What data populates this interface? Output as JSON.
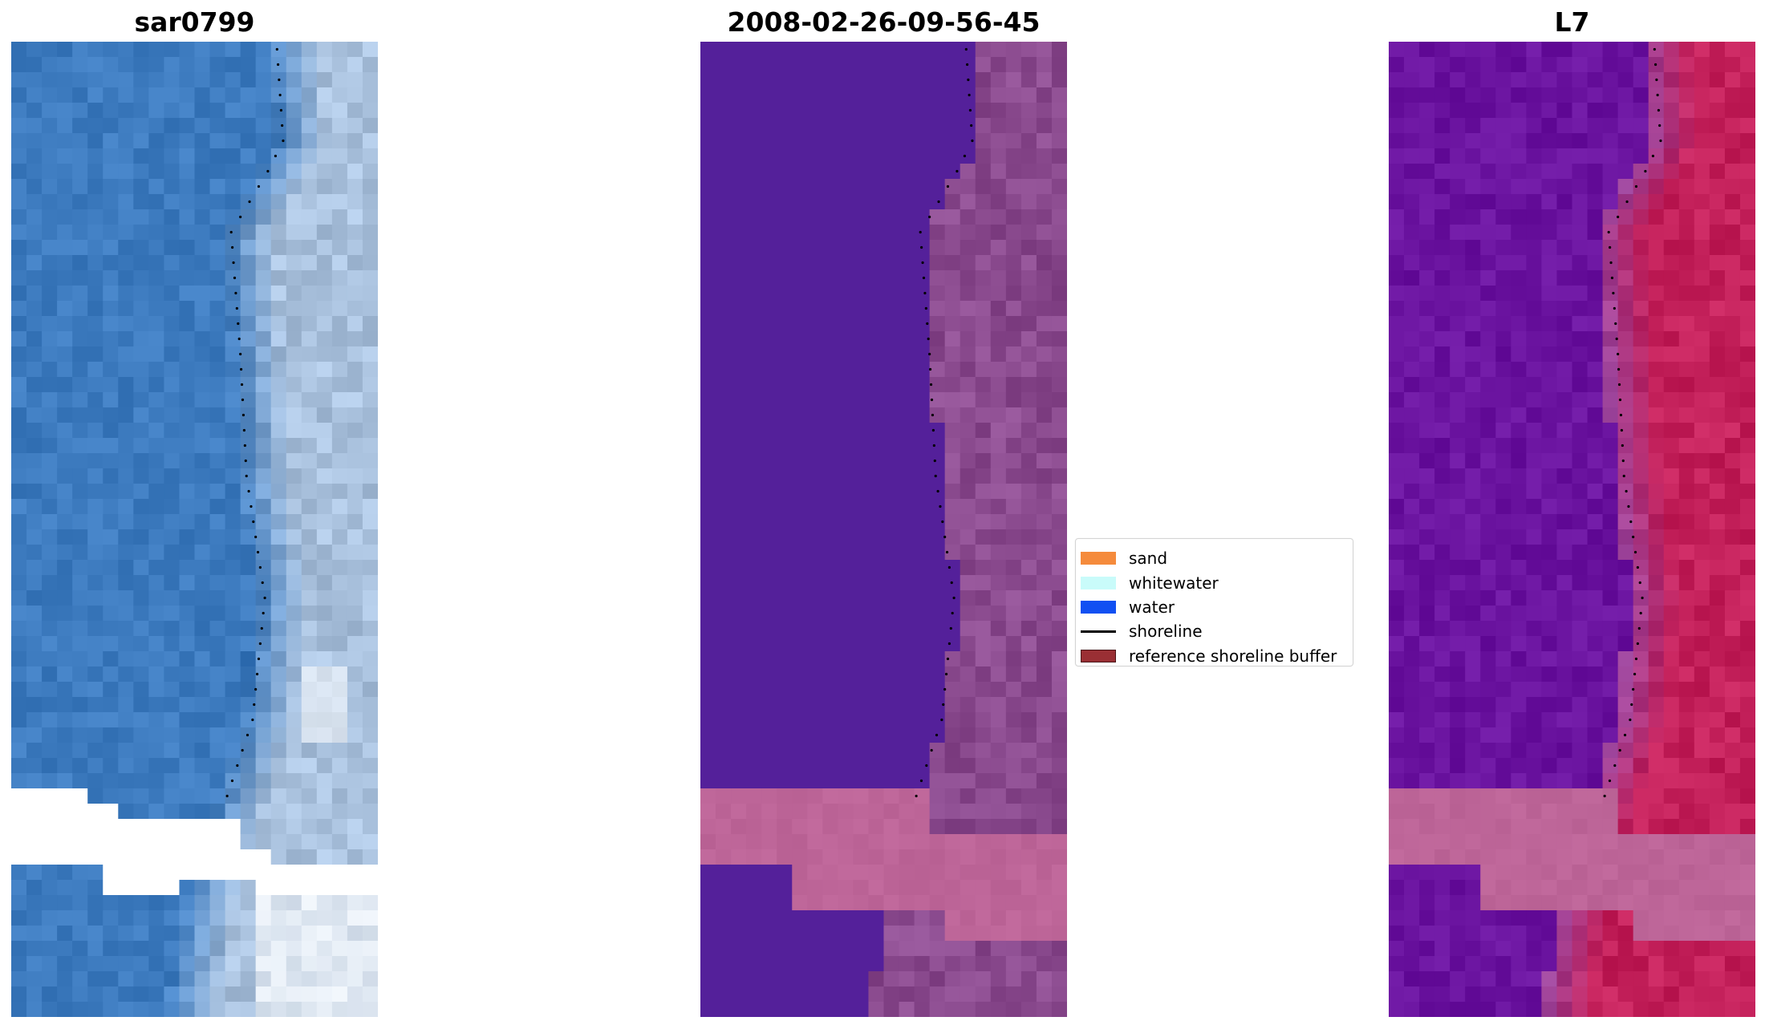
{
  "panels": [
    {
      "title": "sar0799"
    },
    {
      "title": "2008-02-26-09-56-45"
    },
    {
      "title": "L7"
    }
  ],
  "legend": {
    "items": [
      {
        "label": "sand",
        "color": "#f58b3c",
        "kind": "patch"
      },
      {
        "label": "whitewater",
        "color": "#c9fbfa",
        "kind": "patch"
      },
      {
        "label": "water",
        "color": "#1150f2",
        "kind": "patch"
      },
      {
        "label": "shoreline",
        "color": "#000000",
        "kind": "line"
      },
      {
        "label": "reference shoreline buffer",
        "color": "#9a2f34",
        "kind": "patch"
      }
    ]
  },
  "colors": {
    "rgb_water": "#3d7bbf",
    "rgb_surf": "#a9c1dd",
    "class_water": "#54209a",
    "class_shore": "#8a4a8e",
    "class_mask": "#bd6598",
    "l7_water": "#6a139f",
    "l7_land": "#c3205a",
    "nodata": "#ffffff"
  }
}
